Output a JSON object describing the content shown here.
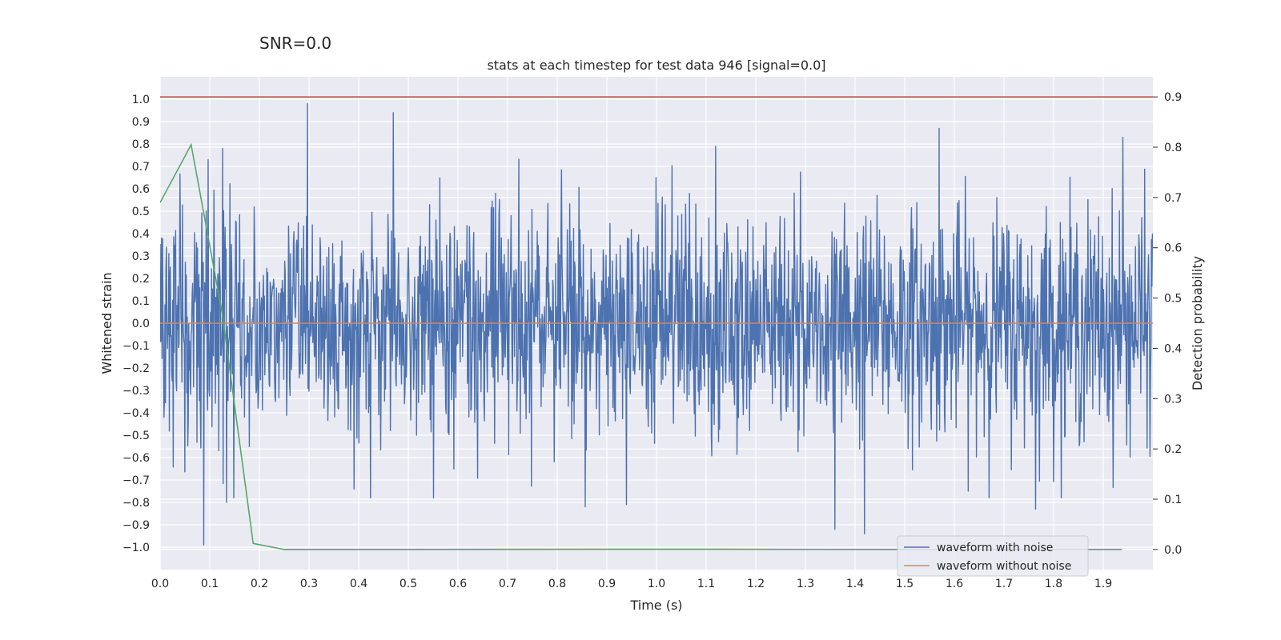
{
  "chart_data": {
    "type": "line",
    "suptitle": "SNR=0.0",
    "title": "stats at each timestep for test data 946 [signal=0.0]",
    "xlabel": "Time (s)",
    "ylabel": "Whitened strain",
    "ylabel_right": "Detection probability",
    "xlim": [
      0.0,
      2.0
    ],
    "ylim": [
      -1.1,
      1.1
    ],
    "ylim_right": [
      -0.04,
      0.94
    ],
    "x_ticks": [
      "0.0",
      "0.1",
      "0.2",
      "0.3",
      "0.4",
      "0.5",
      "0.6",
      "0.7",
      "0.8",
      "0.9",
      "1.0",
      "1.1",
      "1.2",
      "1.3",
      "1.4",
      "1.5",
      "1.6",
      "1.7",
      "1.8",
      "1.9"
    ],
    "y_ticks": [
      "1.0",
      "0.9",
      "0.8",
      "0.7",
      "0.6",
      "0.5",
      "0.4",
      "0.3",
      "0.2",
      "0.1",
      "0.0",
      "−0.1",
      "−0.2",
      "−0.3",
      "−0.4",
      "−0.5",
      "−0.6",
      "−0.7",
      "−0.8",
      "−0.9",
      "−1.0"
    ],
    "y_ticks_right": [
      "0.9",
      "0.8",
      "0.7",
      "0.6",
      "0.5",
      "0.4",
      "0.3",
      "0.2",
      "0.1",
      "0.0"
    ],
    "grid": true,
    "legend_position": "bottom-right",
    "series": [
      {
        "name": "waveform with noise",
        "axis": "left",
        "color": "#4c72b0",
        "points": 2048,
        "noise_sigma": 0.25,
        "peaks": [
          [
            0.003,
            0.38
          ],
          [
            0.088,
            -0.99
          ],
          [
            0.097,
            0.73
          ],
          [
            0.134,
            -0.8
          ],
          [
            0.297,
            0.98
          ],
          [
            0.47,
            0.94
          ],
          [
            0.857,
            -0.82
          ],
          [
            0.94,
            -0.81
          ],
          [
            1.12,
            0.79
          ],
          [
            1.36,
            -0.92
          ],
          [
            1.42,
            -0.94
          ],
          [
            1.57,
            0.87
          ],
          [
            1.765,
            -0.83
          ],
          [
            1.94,
            0.83
          ]
        ]
      },
      {
        "name": "waveform without noise",
        "axis": "left",
        "color": "#dd8452",
        "x": [
          0.0,
          2.0
        ],
        "y": [
          0.0,
          0.0
        ]
      },
      {
        "name": "",
        "axis": "right",
        "color": "#55a868",
        "x": [
          0.0,
          0.0625,
          0.125,
          0.1875,
          0.25,
          0.5,
          1.0,
          1.5,
          1.9375
        ],
        "y": [
          0.69,
          0.805,
          0.47,
          0.012,
          0.0,
          0.0,
          0.0005,
          0.0,
          0.0
        ]
      },
      {
        "name": "",
        "axis": "right",
        "color": "#c44e52",
        "x": [
          0.0,
          2.0
        ],
        "y": [
          0.9,
          0.9
        ]
      }
    ]
  }
}
